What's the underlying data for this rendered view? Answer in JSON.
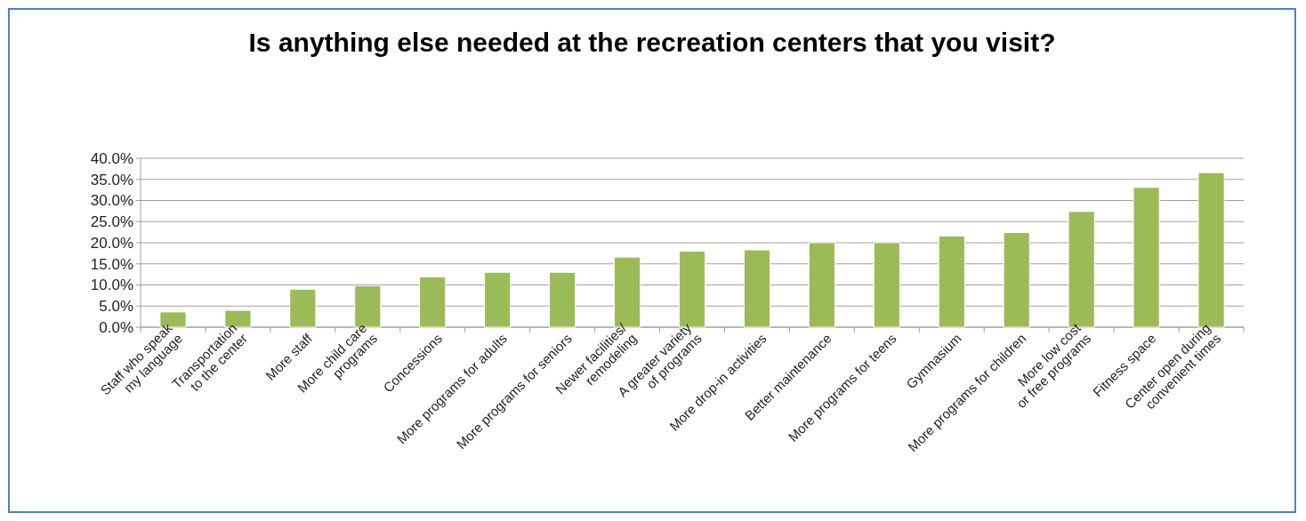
{
  "chart_data": {
    "type": "bar",
    "title": "Is anything else needed at the recreation centers that you visit?",
    "categories": [
      "Staff who speak\nmy language",
      "Transportation\nto the center",
      "More staff",
      "More child care\nprograms",
      "Concessions",
      "More programs for adults",
      "More programs for seniors",
      "Newer facilities/\nremodeling",
      "A greater variety\nof programs",
      "More drop-in activities",
      "Better maintenance",
      "More programs for teens",
      "Gymnasium",
      "More programs for children",
      "More low cost\nor free programs",
      "Fitness space",
      "Center open during\nconvenient times"
    ],
    "values": [
      3.6,
      4.0,
      9.0,
      9.8,
      11.9,
      13.0,
      13.0,
      16.6,
      18.0,
      18.3,
      20.0,
      20.0,
      21.6,
      22.4,
      27.4,
      33.1,
      36.6
    ],
    "color": "#9bbb59",
    "ylim": [
      0,
      40
    ],
    "yticks": [
      {
        "value": 0,
        "label": "0.0%"
      },
      {
        "value": 5,
        "label": "5.0%"
      },
      {
        "value": 10,
        "label": "10.0%"
      },
      {
        "value": 15,
        "label": "15.0%"
      },
      {
        "value": 20,
        "label": "20.0%"
      },
      {
        "value": 25,
        "label": "25.0%"
      },
      {
        "value": 30,
        "label": "30.0%"
      },
      {
        "value": 35,
        "label": "35.0%"
      },
      {
        "value": 40,
        "label": "40.0%"
      }
    ],
    "grid": "y"
  }
}
